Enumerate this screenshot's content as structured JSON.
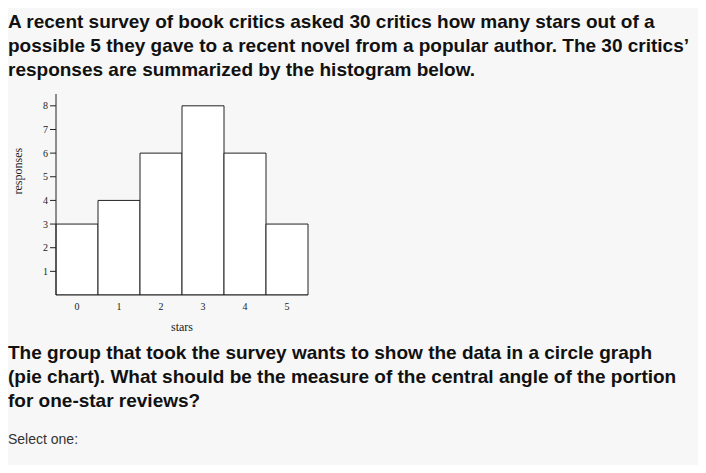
{
  "chart_data": {
    "type": "bar",
    "title": "A recent survey of book critics asked 30 critics how many stars out of a possible 5 they gave to a recent novel from a popular author. The 30 critics’ responses are summarized by the histogram below.",
    "annotations": [
      "The group that took the survey wants to show the data in a circle graph (pie chart). What should be the measure of the central angle of the portion for one-star reviews?",
      "Select one:"
    ],
    "xlabel": "stars",
    "ylabel": "responses",
    "categories": [
      "0",
      "1",
      "2",
      "3",
      "4",
      "5"
    ],
    "values": [
      3,
      4,
      6,
      8,
      6,
      3
    ],
    "color": "#ffffff",
    "ylim": [
      0,
      8.5
    ],
    "yticks": [
      1,
      2,
      3,
      4,
      5,
      6,
      7,
      8
    ],
    "grid": false
  }
}
